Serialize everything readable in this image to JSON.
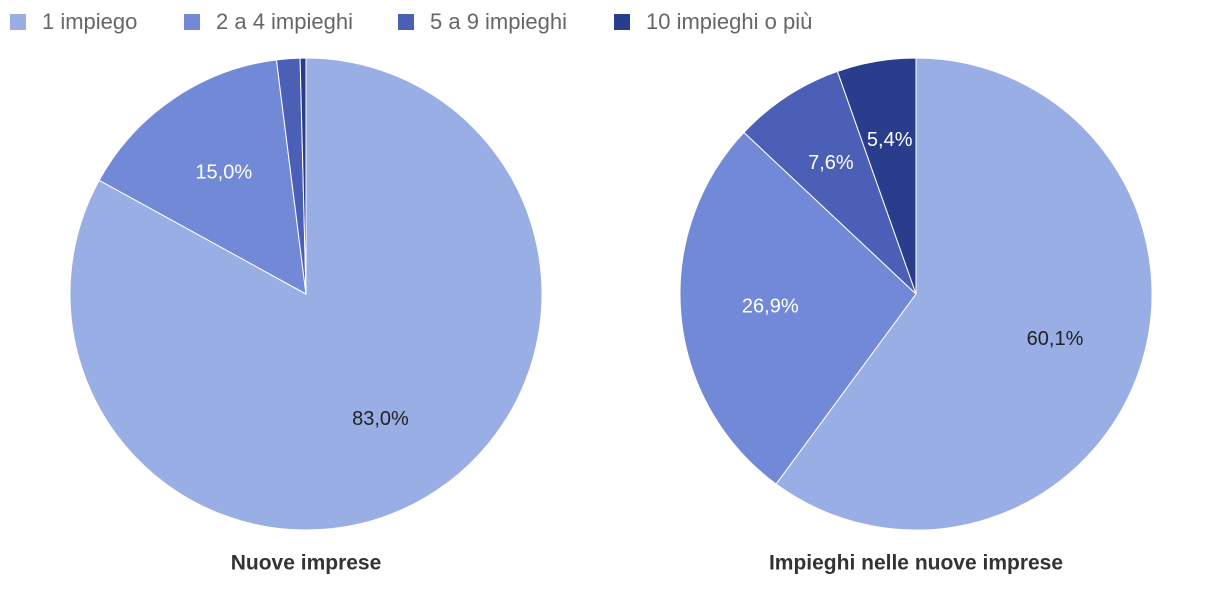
{
  "chart_data": [
    {
      "type": "pie",
      "title": "Nuove imprese",
      "categories": [
        "1 impiego",
        "2 a 4 impieghi",
        "5 a 9 impieghi",
        "10 impieghi o più"
      ],
      "values": [
        83.0,
        15.0,
        1.6,
        0.4
      ],
      "value_labels": [
        "83,0%",
        "15,0%",
        null,
        null
      ],
      "colors": [
        "#9aaee6",
        "#7289d8",
        "#4a5fb5",
        "#2a3d8c"
      ]
    },
    {
      "type": "pie",
      "title": "Impieghi nelle nuove imprese",
      "categories": [
        "1 impiego",
        "2 a 4 impieghi",
        "5 a 9 impieghi",
        "10 impieghi o più"
      ],
      "values": [
        60.1,
        26.9,
        7.6,
        5.4
      ],
      "value_labels": [
        "60,1%",
        "26,9%",
        "7,6%",
        "5,4%"
      ],
      "colors": [
        "#9aaee6",
        "#7289d8",
        "#4a5fb5",
        "#2a3d8c"
      ]
    }
  ]
}
